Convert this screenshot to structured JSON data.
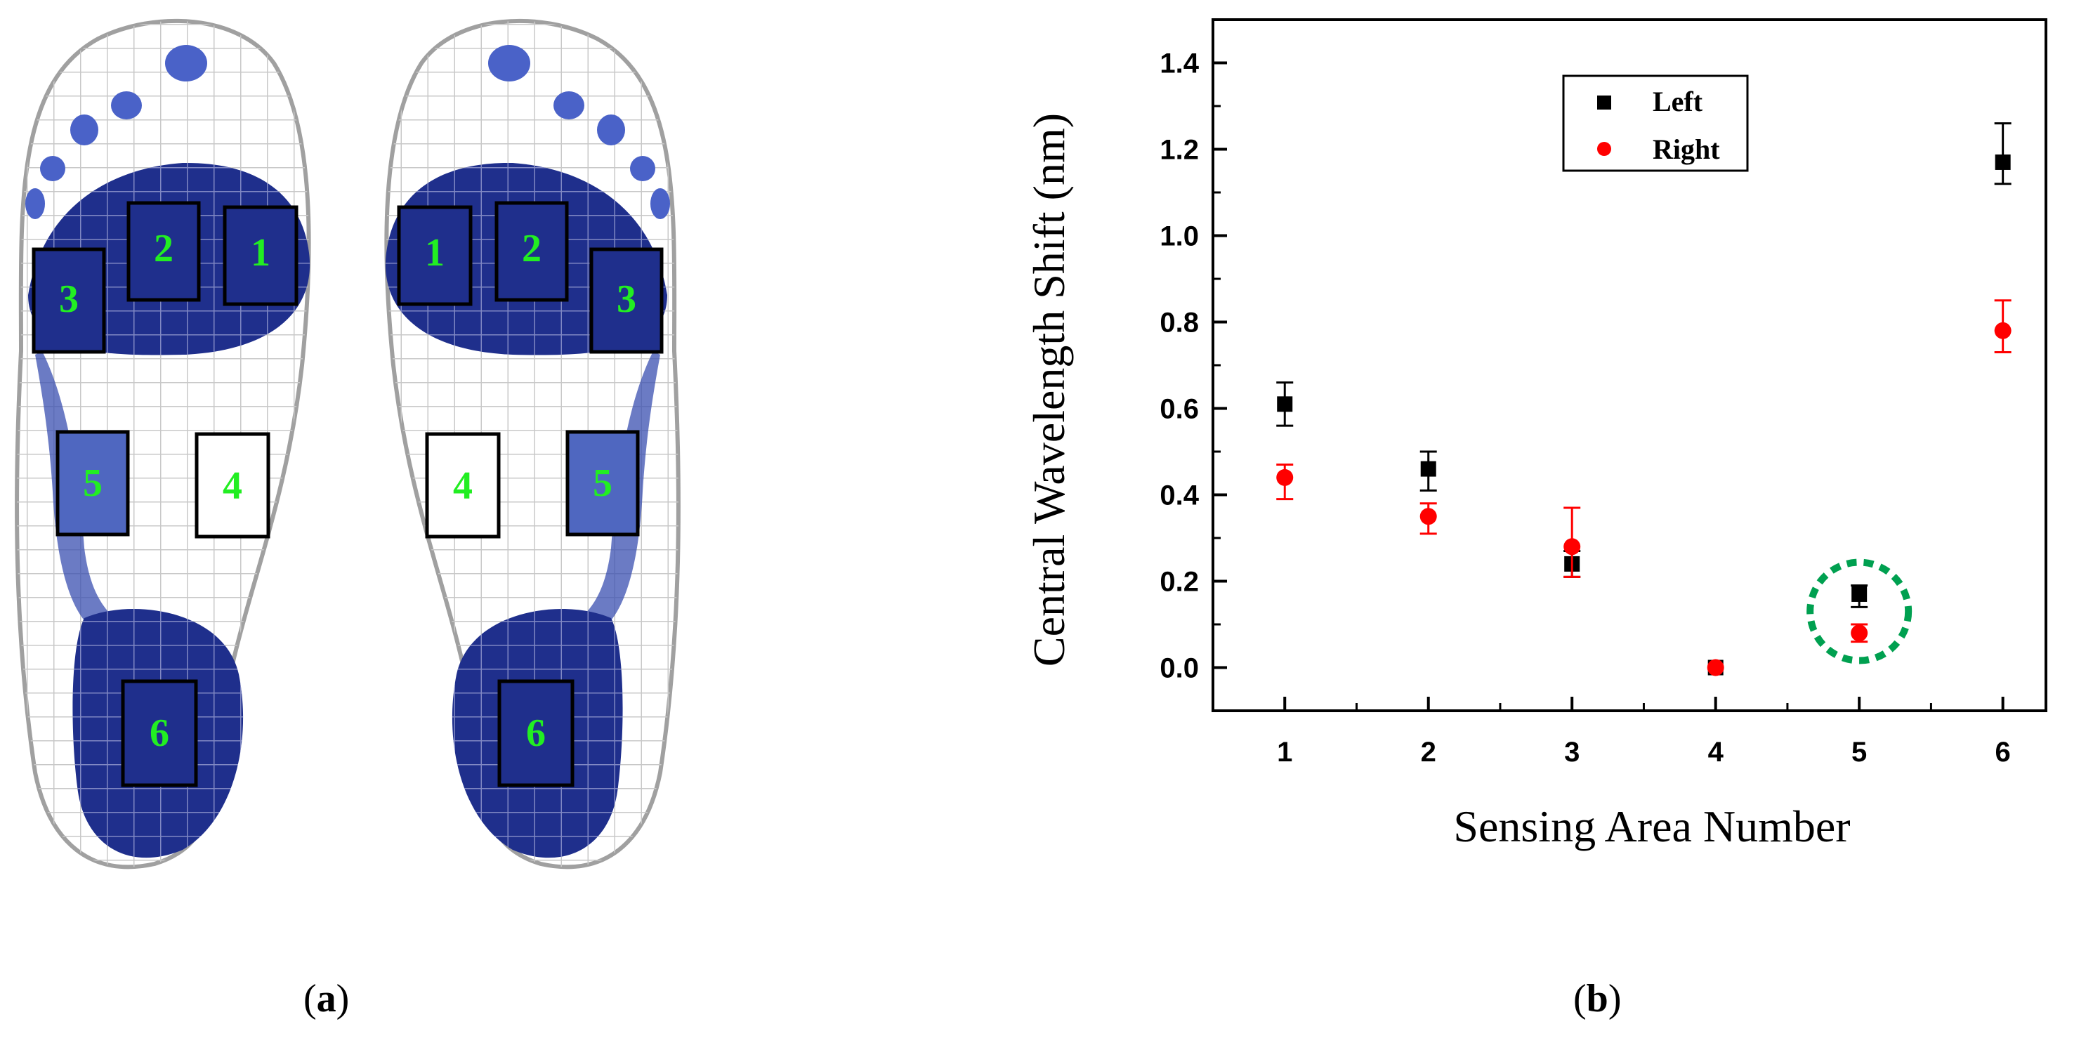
{
  "figure": {
    "panel_a": {
      "caption_letter": "a",
      "left_foot_regions": [
        "2",
        "1",
        "3",
        "5",
        "4",
        "6"
      ],
      "right_foot_regions": [
        "1",
        "2",
        "3",
        "4",
        "5",
        "6"
      ],
      "colors": {
        "pressure": "#1f2f8c",
        "label": "#22ee22",
        "mesh": "#c8c8c8"
      }
    },
    "panel_b": {
      "caption_letter": "b"
    }
  },
  "chart_data": {
    "type": "scatter",
    "xlabel": "Sensing Area Number",
    "ylabel": "Central Wavelength Shift (nm)",
    "x": [
      1,
      2,
      3,
      4,
      5,
      6
    ],
    "xlim": [
      0.5,
      6.3
    ],
    "ylim": [
      -0.1,
      1.5
    ],
    "xticks": [
      "1",
      "2",
      "3",
      "4",
      "5",
      "6"
    ],
    "yticks": [
      "0.0",
      "0.2",
      "0.4",
      "0.6",
      "0.8",
      "1.0",
      "1.2",
      "1.4"
    ],
    "series": [
      {
        "name": "Left",
        "marker": "square",
        "color": "#000000",
        "values": [
          0.61,
          0.46,
          0.24,
          0.0,
          0.17,
          1.17
        ],
        "err_low": [
          0.05,
          0.05,
          0.03,
          0.0,
          0.03,
          0.05
        ],
        "err_high": [
          0.05,
          0.04,
          0.03,
          0.0,
          0.02,
          0.09
        ]
      },
      {
        "name": "Right",
        "marker": "circle",
        "color": "#ff0000",
        "values": [
          0.44,
          0.35,
          0.28,
          0.0,
          0.08,
          0.78
        ],
        "err_low": [
          0.05,
          0.04,
          0.07,
          0.0,
          0.02,
          0.05
        ],
        "err_high": [
          0.03,
          0.03,
          0.09,
          0.0,
          0.02,
          0.07
        ]
      }
    ],
    "legend": "top",
    "annotation": {
      "type": "dashed-circle",
      "color": "#00a050",
      "x": 5,
      "y": 0.13
    }
  }
}
